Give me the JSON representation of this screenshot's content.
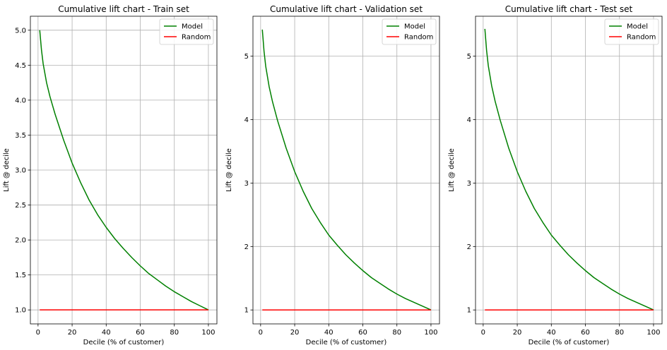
{
  "chart_data": [
    {
      "type": "line",
      "title": "Cumulative lift chart - Train set",
      "xlabel": "Decile (% of customer)",
      "ylabel": "Lift @ decile",
      "xlim": [
        -4.5,
        105
      ],
      "ylim": [
        0.8,
        5.2
      ],
      "xticks": [
        "0",
        "20",
        "40",
        "60",
        "80",
        "100"
      ],
      "yticks": [
        "1.0",
        "1.5",
        "2.0",
        "2.5",
        "3.0",
        "3.5",
        "4.0",
        "4.5",
        "5.0"
      ],
      "grid": true,
      "legend_position": "top-right",
      "x": [
        1,
        2,
        3,
        5,
        7,
        10,
        15,
        20,
        25,
        30,
        35,
        40,
        45,
        50,
        55,
        60,
        65,
        70,
        75,
        80,
        85,
        90,
        95,
        100
      ],
      "series": [
        {
          "name": "Model",
          "color": "#008000",
          "values": [
            5.0,
            4.72,
            4.52,
            4.25,
            4.05,
            3.8,
            3.43,
            3.1,
            2.82,
            2.57,
            2.36,
            2.18,
            2.02,
            1.88,
            1.75,
            1.63,
            1.52,
            1.43,
            1.34,
            1.26,
            1.19,
            1.12,
            1.06,
            1.0
          ]
        },
        {
          "name": "Random",
          "color": "#ff0000",
          "values": [
            1.0,
            1.0,
            1.0,
            1.0,
            1.0,
            1.0,
            1.0,
            1.0,
            1.0,
            1.0,
            1.0,
            1.0,
            1.0,
            1.0,
            1.0,
            1.0,
            1.0,
            1.0,
            1.0,
            1.0,
            1.0,
            1.0,
            1.0,
            1.0
          ]
        }
      ]
    },
    {
      "type": "line",
      "title": "Cumulative lift chart - Validation set",
      "xlabel": "Decile (% of customer)",
      "ylabel": "Lift @ decile",
      "xlim": [
        -4.5,
        105
      ],
      "ylim": [
        0.78,
        5.63
      ],
      "xticks": [
        "0",
        "20",
        "40",
        "60",
        "80",
        "100"
      ],
      "yticks": [
        "1",
        "2",
        "3",
        "4",
        "5"
      ],
      "grid": true,
      "legend_position": "top-right",
      "x": [
        1,
        2,
        3,
        5,
        7,
        10,
        15,
        20,
        25,
        30,
        35,
        40,
        45,
        50,
        55,
        60,
        65,
        70,
        75,
        80,
        85,
        90,
        95,
        100
      ],
      "series": [
        {
          "name": "Model",
          "color": "#008000",
          "values": [
            5.42,
            5.08,
            4.84,
            4.52,
            4.28,
            3.98,
            3.55,
            3.18,
            2.87,
            2.6,
            2.38,
            2.18,
            2.02,
            1.87,
            1.74,
            1.62,
            1.51,
            1.42,
            1.33,
            1.25,
            1.18,
            1.12,
            1.06,
            1.0
          ]
        },
        {
          "name": "Random",
          "color": "#ff0000",
          "values": [
            1.0,
            1.0,
            1.0,
            1.0,
            1.0,
            1.0,
            1.0,
            1.0,
            1.0,
            1.0,
            1.0,
            1.0,
            1.0,
            1.0,
            1.0,
            1.0,
            1.0,
            1.0,
            1.0,
            1.0,
            1.0,
            1.0,
            1.0,
            1.0
          ]
        }
      ]
    },
    {
      "type": "line",
      "title": "Cumulative lift chart - Test set",
      "xlabel": "Decile (% of customer)",
      "ylabel": "Lift @ decile",
      "xlim": [
        -4.5,
        105
      ],
      "ylim": [
        0.78,
        5.63
      ],
      "xticks": [
        "0",
        "20",
        "40",
        "60",
        "80",
        "100"
      ],
      "yticks": [
        "1",
        "2",
        "3",
        "4",
        "5"
      ],
      "grid": true,
      "legend_position": "top-right",
      "x": [
        1,
        2,
        3,
        5,
        7,
        10,
        15,
        20,
        25,
        30,
        35,
        40,
        45,
        50,
        55,
        60,
        65,
        70,
        75,
        80,
        85,
        90,
        95,
        100
      ],
      "series": [
        {
          "name": "Model",
          "color": "#008000",
          "values": [
            5.43,
            5.09,
            4.85,
            4.53,
            4.29,
            3.99,
            3.55,
            3.18,
            2.87,
            2.6,
            2.38,
            2.18,
            2.02,
            1.87,
            1.74,
            1.62,
            1.51,
            1.42,
            1.33,
            1.25,
            1.18,
            1.12,
            1.06,
            1.0
          ]
        },
        {
          "name": "Random",
          "color": "#ff0000",
          "values": [
            1.0,
            1.0,
            1.0,
            1.0,
            1.0,
            1.0,
            1.0,
            1.0,
            1.0,
            1.0,
            1.0,
            1.0,
            1.0,
            1.0,
            1.0,
            1.0,
            1.0,
            1.0,
            1.0,
            1.0,
            1.0,
            1.0,
            1.0,
            1.0
          ]
        }
      ]
    }
  ]
}
